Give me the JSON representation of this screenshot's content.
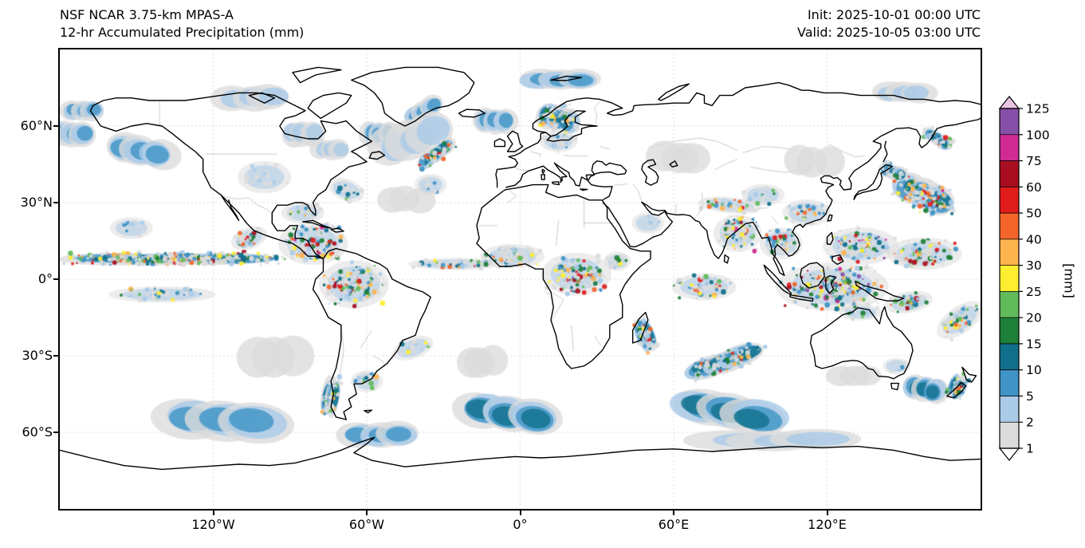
{
  "header": {
    "title_line1": "NSF NCAR 3.75-km MPAS-A",
    "title_line2": "12-hr Accumulated Precipitation (mm)",
    "init_label": "Init: 2025-10-01 00:00 UTC",
    "valid_label": "Valid: 2025-10-05 03:00 UTC"
  },
  "axes": {
    "lat_ticks": [
      {
        "label": "60°N",
        "lat": 60
      },
      {
        "label": "30°N",
        "lat": 30
      },
      {
        "label": "0°",
        "lat": 0
      },
      {
        "label": "30°S",
        "lat": -30
      },
      {
        "label": "60°S",
        "lat": -60
      }
    ],
    "lon_ticks": [
      {
        "label": "120°W",
        "lon": -120
      },
      {
        "label": "60°W",
        "lon": -60
      },
      {
        "label": "0°",
        "lon": 0
      },
      {
        "label": "60°E",
        "lon": 60
      },
      {
        "label": "120°E",
        "lon": 120
      }
    ]
  },
  "colorbar": {
    "unit_label": "[mm]",
    "levels": [
      1,
      2,
      5,
      10,
      15,
      20,
      25,
      30,
      40,
      50,
      60,
      75,
      100,
      125
    ],
    "tick_labels_top_to_bottom": [
      "125",
      "100",
      "75",
      "60",
      "50",
      "40",
      "30",
      "25",
      "20",
      "15",
      "10",
      "5",
      "2",
      "1"
    ],
    "segment_colors_bottom_to_top": [
      "#dcdcdc",
      "#a9cbe8",
      "#3f93c7",
      "#10708c",
      "#1d7f38",
      "#62bb5b",
      "#fdee2f",
      "#fdb44e",
      "#f4652a",
      "#e01c1c",
      "#a80e20",
      "#cf2b93",
      "#8650a8"
    ],
    "under_color": "#ffffff",
    "over_color": "#e9c2e4",
    "outline_color": "#000000"
  },
  "chart_data": {
    "type": "heatmap",
    "title": "NSF NCAR 3.75-km MPAS-A — 12-hr Accumulated Precipitation (mm)",
    "units": "mm",
    "projection": "equirectangular global map with coastlines and country borders",
    "lon_range": [
      -180,
      180
    ],
    "lat_range": [
      -90,
      90
    ],
    "x_tick_labels": [
      "120°W",
      "60°W",
      "0°",
      "60°E",
      "120°E"
    ],
    "y_tick_labels": [
      "60°N",
      "30°N",
      "0°",
      "30°S",
      "60°S"
    ],
    "colorbar_levels_mm": [
      1,
      2,
      5,
      10,
      15,
      20,
      25,
      30,
      40,
      50,
      60,
      75,
      100,
      125
    ],
    "grid": true,
    "legend_position": "right colorbar with extend arrows both ends",
    "precip_features": [
      {
        "name": "gulf-alaska",
        "lon": -148,
        "lat": 50,
        "rx_deg": 13,
        "ry_deg": 6,
        "rot_deg": 10,
        "max_mm": 10,
        "density": 0.6,
        "style": "smooth"
      },
      {
        "name": "bering-sea",
        "lon": -175,
        "lat": 57,
        "rx_deg": 9,
        "ry_deg": 5,
        "rot_deg": 0,
        "max_mm": 10,
        "density": 0.5,
        "style": "smooth"
      },
      {
        "name": "chukchi",
        "lon": -171,
        "lat": 66,
        "rx_deg": 8,
        "ry_deg": 4,
        "rot_deg": 0,
        "max_mm": 10,
        "density": 0.5,
        "style": "smooth"
      },
      {
        "name": "canada-arctic-gray",
        "lon": -105,
        "lat": 71,
        "rx_deg": 14,
        "ry_deg": 5,
        "rot_deg": 0,
        "max_mm": 5,
        "density": 0.4,
        "style": "smooth"
      },
      {
        "name": "hudson-gray",
        "lon": -85,
        "lat": 57,
        "rx_deg": 8,
        "ry_deg": 5,
        "rot_deg": 0,
        "max_mm": 5,
        "density": 0.4,
        "style": "smooth"
      },
      {
        "name": "quebec-gray",
        "lon": -74,
        "lat": 51,
        "rx_deg": 7,
        "ry_deg": 4,
        "rot_deg": 0,
        "max_mm": 5,
        "density": 0.4,
        "style": "smooth"
      },
      {
        "name": "labrador-sea",
        "lon": -55,
        "lat": 57,
        "rx_deg": 7,
        "ry_deg": 5,
        "rot_deg": 0,
        "max_mm": 10,
        "density": 0.5,
        "style": "smooth"
      },
      {
        "name": "greenland-se",
        "lon": -38,
        "lat": 66,
        "rx_deg": 8,
        "ry_deg": 4,
        "rot_deg": -30,
        "max_mm": 10,
        "density": 0.5,
        "style": "smooth"
      },
      {
        "name": "iceland-uk",
        "lon": -10,
        "lat": 62,
        "rx_deg": 8,
        "ry_deg": 5,
        "rot_deg": 0,
        "max_mm": 10,
        "density": 0.45,
        "style": "smooth"
      },
      {
        "name": "svalbard-arctic",
        "lon": 15,
        "lat": 78,
        "rx_deg": 14,
        "ry_deg": 4,
        "rot_deg": 0,
        "max_mm": 10,
        "density": 0.5,
        "style": "smooth"
      },
      {
        "name": "north-atlantic-broad",
        "lon": -42,
        "lat": 55,
        "rx_deg": 16,
        "ry_deg": 8,
        "rot_deg": -20,
        "max_mm": 5,
        "density": 0.5,
        "style": "smooth"
      },
      {
        "name": "mid-atlantic-gray",
        "lon": -45,
        "lat": 31,
        "rx_deg": 10,
        "ry_deg": 5,
        "rot_deg": 0,
        "max_mm": 2,
        "density": 0.3,
        "style": "smooth"
      },
      {
        "name": "se-pacific-gray",
        "lon": -95,
        "lat": -30,
        "rx_deg": 14,
        "ry_deg": 8,
        "rot_deg": 0,
        "max_mm": 2,
        "density": 0.35,
        "style": "smooth"
      },
      {
        "name": "se-atlantic-gray",
        "lon": -15,
        "lat": -32,
        "rx_deg": 10,
        "ry_deg": 6,
        "rot_deg": 0,
        "max_mm": 2,
        "density": 0.3,
        "style": "smooth"
      },
      {
        "name": "caspian-kazakh-gray",
        "lon": 62,
        "lat": 48,
        "rx_deg": 12,
        "ry_deg": 6,
        "rot_deg": 0,
        "max_mm": 2,
        "density": 0.4,
        "style": "smooth"
      },
      {
        "name": "ne-asia-gray",
        "lon": 115,
        "lat": 46,
        "rx_deg": 10,
        "ry_deg": 6,
        "rot_deg": 0,
        "max_mm": 2,
        "density": 0.3,
        "style": "smooth"
      },
      {
        "name": "south-indian-swirl",
        "lon": 82,
        "lat": -52,
        "rx_deg": 22,
        "ry_deg": 7,
        "rot_deg": 10,
        "max_mm": 15,
        "density": 0.8,
        "style": "smooth"
      },
      {
        "name": "southern-ocean-atlantic",
        "lon": -5,
        "lat": -53,
        "rx_deg": 18,
        "ry_deg": 7,
        "rot_deg": 10,
        "max_mm": 15,
        "density": 0.7,
        "style": "smooth"
      },
      {
        "name": "southern-ocean-pacific",
        "lon": -115,
        "lat": -55,
        "rx_deg": 25,
        "ry_deg": 8,
        "rot_deg": 5,
        "max_mm": 10,
        "density": 0.6,
        "style": "smooth"
      },
      {
        "name": "drake-weddell",
        "lon": -55,
        "lat": -61,
        "rx_deg": 14,
        "ry_deg": 5,
        "rot_deg": 0,
        "max_mm": 10,
        "density": 0.5,
        "style": "smooth"
      },
      {
        "name": "antarctic-band-east",
        "lon": 100,
        "lat": -63,
        "rx_deg": 30,
        "ry_deg": 4,
        "rot_deg": 0,
        "max_mm": 5,
        "density": 0.5,
        "style": "smooth"
      },
      {
        "name": "bight-gray",
        "lon": 130,
        "lat": -38,
        "rx_deg": 10,
        "ry_deg": 4,
        "rot_deg": 0,
        "max_mm": 2,
        "density": 0.3,
        "style": "smooth"
      },
      {
        "name": "tasman-sea",
        "lon": 158,
        "lat": -43,
        "rx_deg": 8,
        "ry_deg": 5,
        "rot_deg": 10,
        "max_mm": 15,
        "density": 0.5,
        "style": "smooth"
      },
      {
        "name": "arctic-east-siberia",
        "lon": 150,
        "lat": 73,
        "rx_deg": 12,
        "ry_deg": 4,
        "rot_deg": 0,
        "max_mm": 5,
        "density": 0.4,
        "style": "smooth"
      },
      {
        "name": "north-atlantic-comma",
        "lon": -33,
        "lat": 49,
        "rx_deg": 9,
        "ry_deg": 3.5,
        "rot_deg": -40,
        "max_mm": 75,
        "density": 0.9,
        "style": "mixed"
      },
      {
        "name": "scandinavia",
        "lon": 15,
        "lat": 63,
        "rx_deg": 9,
        "ry_deg": 6,
        "rot_deg": 20,
        "max_mm": 50,
        "density": 0.8,
        "style": "mixed"
      },
      {
        "name": "nw-pacific-storm",
        "lon": 158,
        "lat": 33,
        "rx_deg": 14,
        "ry_deg": 7,
        "rot_deg": 25,
        "max_mm": 100,
        "density": 0.9,
        "style": "mixed"
      },
      {
        "name": "japan-east",
        "lon": 146,
        "lat": 42,
        "rx_deg": 6,
        "ry_deg": 3.5,
        "rot_deg": 20,
        "max_mm": 50,
        "density": 0.7,
        "style": "mixed"
      },
      {
        "name": "kamchatka-streak",
        "lon": 163,
        "lat": 55,
        "rx_deg": 7,
        "ry_deg": 3,
        "rot_deg": 35,
        "max_mm": 60,
        "density": 0.8,
        "style": "mixed"
      },
      {
        "name": "madagascar-streak",
        "lon": 49,
        "lat": -22,
        "rx_deg": 4,
        "ry_deg": 8,
        "rot_deg": -25,
        "max_mm": 75,
        "density": 0.7,
        "style": "mixed"
      },
      {
        "name": "south-indian-front",
        "lon": 80,
        "lat": -32,
        "rx_deg": 19,
        "ry_deg": 5,
        "rot_deg": -18,
        "max_mm": 60,
        "density": 0.7,
        "style": "mixed"
      },
      {
        "name": "chile-south-coast",
        "lon": -74,
        "lat": -46,
        "rx_deg": 4,
        "ry_deg": 9,
        "rot_deg": 10,
        "max_mm": 40,
        "density": 0.7,
        "style": "mixed"
      },
      {
        "name": "new-zealand",
        "lon": 171,
        "lat": -42,
        "rx_deg": 4,
        "ry_deg": 6,
        "rot_deg": 20,
        "max_mm": 60,
        "density": 0.7,
        "style": "mixed"
      },
      {
        "name": "itcz-east-pacific",
        "lon": -135,
        "lat": 8,
        "rx_deg": 45,
        "ry_deg": 2.8,
        "rot_deg": 0,
        "max_mm": 75,
        "density": 2.0,
        "style": "mixed"
      },
      {
        "name": "itcz-atlantic",
        "lon": -25,
        "lat": 6,
        "rx_deg": 18,
        "ry_deg": 2.2,
        "rot_deg": 0,
        "max_mm": 60,
        "density": 0.9,
        "style": "speckle"
      },
      {
        "name": "south-pacific-eq",
        "lon": -140,
        "lat": -6,
        "rx_deg": 20,
        "ry_deg": 3,
        "rot_deg": 0,
        "max_mm": 40,
        "density": 0.5,
        "style": "speckle"
      },
      {
        "name": "amazon",
        "lon": -65,
        "lat": -2,
        "rx_deg": 13,
        "ry_deg": 9,
        "rot_deg": 0,
        "max_mm": 75,
        "density": 0.9,
        "style": "speckle"
      },
      {
        "name": "caribbean",
        "lon": -81,
        "lat": 14,
        "rx_deg": 13,
        "ry_deg": 8,
        "rot_deg": 0,
        "max_mm": 100,
        "density": 0.9,
        "style": "speckle"
      },
      {
        "name": "mexico-pacific",
        "lon": -106,
        "lat": 16,
        "rx_deg": 7,
        "ry_deg": 4,
        "rot_deg": -20,
        "max_mm": 75,
        "density": 0.8,
        "style": "speckle"
      },
      {
        "name": "gulf-florida",
        "lon": -85,
        "lat": 26,
        "rx_deg": 8,
        "ry_deg": 4,
        "rot_deg": 0,
        "max_mm": 40,
        "density": 0.5,
        "style": "speckle"
      },
      {
        "name": "us-plains",
        "lon": -100,
        "lat": 40,
        "rx_deg": 10,
        "ry_deg": 6,
        "rot_deg": 0,
        "max_mm": 10,
        "density": 0.25,
        "style": "speckle"
      },
      {
        "name": "us-east-offshore",
        "lon": -68,
        "lat": 35,
        "rx_deg": 7,
        "ry_deg": 4,
        "rot_deg": 20,
        "max_mm": 30,
        "density": 0.5,
        "style": "speckle"
      },
      {
        "name": "hawaii-region",
        "lon": -152,
        "lat": 20,
        "rx_deg": 8,
        "ry_deg": 4,
        "rot_deg": 0,
        "max_mm": 10,
        "density": 0.3,
        "style": "speckle"
      },
      {
        "name": "azores",
        "lon": -35,
        "lat": 37,
        "rx_deg": 6,
        "ry_deg": 4,
        "rot_deg": 0,
        "max_mm": 10,
        "density": 0.3,
        "style": "speckle"
      },
      {
        "name": "baltic-germany",
        "lon": 15,
        "lat": 54,
        "rx_deg": 7,
        "ry_deg": 4,
        "rot_deg": 0,
        "max_mm": 10,
        "density": 0.5,
        "style": "speckle"
      },
      {
        "name": "west-africa",
        "lon": -3,
        "lat": 9,
        "rx_deg": 12,
        "ry_deg": 4.5,
        "rot_deg": 0,
        "max_mm": 60,
        "density": 0.8,
        "style": "speckle"
      },
      {
        "name": "central-africa",
        "lon": 22,
        "lat": 2,
        "rx_deg": 13,
        "ry_deg": 8,
        "rot_deg": 0,
        "max_mm": 75,
        "density": 0.9,
        "style": "speckle"
      },
      {
        "name": "horn-ethiopia",
        "lon": 38,
        "lat": 7,
        "rx_deg": 5,
        "ry_deg": 3.5,
        "rot_deg": 0,
        "max_mm": 40,
        "density": 0.6,
        "style": "speckle"
      },
      {
        "name": "arabia-sparse",
        "lon": 50,
        "lat": 22,
        "rx_deg": 6,
        "ry_deg": 4,
        "rot_deg": 0,
        "max_mm": 5,
        "density": 0.2,
        "style": "speckle"
      },
      {
        "name": "himalaya-band",
        "lon": 82,
        "lat": 29,
        "rx_deg": 12,
        "ry_deg": 3,
        "rot_deg": 5,
        "max_mm": 60,
        "density": 0.8,
        "style": "speckle"
      },
      {
        "name": "india-bengal",
        "lon": 85,
        "lat": 18,
        "rx_deg": 9,
        "ry_deg": 7,
        "rot_deg": 0,
        "max_mm": 100,
        "density": 0.9,
        "style": "speckle"
      },
      {
        "name": "indochina",
        "lon": 102,
        "lat": 14,
        "rx_deg": 8,
        "ry_deg": 6,
        "rot_deg": 0,
        "max_mm": 60,
        "density": 0.8,
        "style": "speckle"
      },
      {
        "name": "south-china",
        "lon": 112,
        "lat": 26,
        "rx_deg": 9,
        "ry_deg": 5,
        "rot_deg": 0,
        "max_mm": 50,
        "density": 0.6,
        "style": "speckle"
      },
      {
        "name": "maritime-continent",
        "lon": 122,
        "lat": -3,
        "rx_deg": 21,
        "ry_deg": 9,
        "rot_deg": 0,
        "max_mm": 125,
        "density": 1.0,
        "style": "speckle"
      },
      {
        "name": "philippines-sea",
        "lon": 133,
        "lat": 13,
        "rx_deg": 14,
        "ry_deg": 7,
        "rot_deg": 0,
        "max_mm": 125,
        "density": 0.9,
        "style": "speckle"
      },
      {
        "name": "west-pacific-pool",
        "lon": 158,
        "lat": 10,
        "rx_deg": 14,
        "ry_deg": 6,
        "rot_deg": 0,
        "max_mm": 100,
        "density": 0.8,
        "style": "speckle"
      },
      {
        "name": "new-guinea-solomon",
        "lon": 152,
        "lat": -9,
        "rx_deg": 9,
        "ry_deg": 4,
        "rot_deg": -10,
        "max_mm": 100,
        "density": 0.8,
        "style": "speckle"
      },
      {
        "name": "spcz",
        "lon": 172,
        "lat": -16,
        "rx_deg": 10,
        "ry_deg": 5,
        "rot_deg": -35,
        "max_mm": 75,
        "density": 0.8,
        "style": "speckle"
      },
      {
        "name": "eq-indian",
        "lon": 72,
        "lat": -3,
        "rx_deg": 12,
        "ry_deg": 5,
        "rot_deg": 0,
        "max_mm": 60,
        "density": 0.6,
        "style": "speckle"
      },
      {
        "name": "australia-north",
        "lon": 133,
        "lat": -13,
        "rx_deg": 8,
        "ry_deg": 3,
        "rot_deg": 0,
        "max_mm": 25,
        "density": 0.4,
        "style": "speckle"
      },
      {
        "name": "se-australia",
        "lon": 147,
        "lat": -34,
        "rx_deg": 5,
        "ry_deg": 3,
        "rot_deg": 0,
        "max_mm": 10,
        "density": 0.3,
        "style": "speckle"
      },
      {
        "name": "argentina-coast",
        "lon": -60,
        "lat": -40,
        "rx_deg": 6,
        "ry_deg": 4,
        "rot_deg": 0,
        "max_mm": 50,
        "density": 0.5,
        "style": "speckle"
      },
      {
        "name": "brazil-se",
        "lon": -42,
        "lat": -27,
        "rx_deg": 8,
        "ry_deg": 4,
        "rot_deg": -20,
        "max_mm": 30,
        "density": 0.4,
        "style": "speckle"
      },
      {
        "name": "tibet-scatter",
        "lon": 95,
        "lat": 33,
        "rx_deg": 8,
        "ry_deg": 4,
        "rot_deg": 0,
        "max_mm": 25,
        "density": 0.4,
        "style": "speckle"
      }
    ]
  }
}
